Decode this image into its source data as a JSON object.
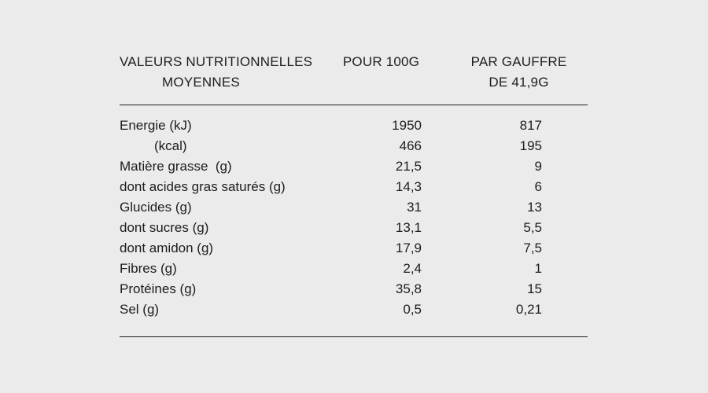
{
  "page": {
    "background_color": "#ebebeb",
    "text_color": "#1d1d1b",
    "rule_color": "#1d1d1b"
  },
  "table": {
    "header": {
      "col1": [
        "VALEURS NUTRITIONNELLES",
        "MOYENNES"
      ],
      "col2": [
        "POUR 100G"
      ],
      "col3": [
        "PAR GAUFFRE",
        "DE 41,9G"
      ]
    },
    "rows": [
      {
        "label": "Energie (kJ)",
        "per_100g": "1950",
        "per_gauffre": "817",
        "indent": false
      },
      {
        "label": "(kcal)",
        "per_100g": "466",
        "per_gauffre": "195",
        "indent": true
      },
      {
        "label": "Matière grasse  (g)",
        "per_100g": "21,5",
        "per_gauffre": "9",
        "indent": false
      },
      {
        "label": "dont acides gras saturés (g)",
        "per_100g": "14,3",
        "per_gauffre": "6",
        "indent": false
      },
      {
        "label": "Glucides (g)",
        "per_100g": "31",
        "per_gauffre": "13",
        "indent": false
      },
      {
        "label": "dont sucres (g)",
        "per_100g": "13,1",
        "per_gauffre": "5,5",
        "indent": false
      },
      {
        "label": "dont amidon (g)",
        "per_100g": "17,9",
        "per_gauffre": "7,5",
        "indent": false
      },
      {
        "label": "Fibres (g)",
        "per_100g": "2,4",
        "per_gauffre": "1",
        "indent": false
      },
      {
        "label": "Protéines (g)",
        "per_100g": "35,8",
        "per_gauffre": "15",
        "indent": false
      },
      {
        "label": "Sel (g)",
        "per_100g": "0,5",
        "per_gauffre": "0,21",
        "indent": false
      }
    ]
  }
}
